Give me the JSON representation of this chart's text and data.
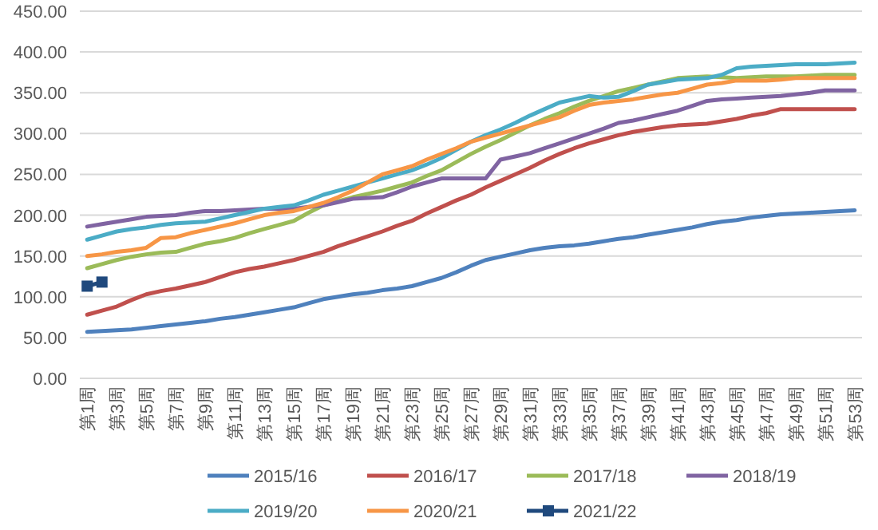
{
  "chart_data": {
    "type": "line",
    "categories": [
      "第1周",
      null,
      "第3周",
      null,
      "第5周",
      null,
      "第7周",
      null,
      "第9周",
      null,
      "第11周",
      null,
      "第13周",
      null,
      "第15周",
      null,
      "第17周",
      null,
      "第19周",
      null,
      "第21周",
      null,
      "第23周",
      null,
      "第25周",
      null,
      "第27周",
      null,
      "第29周",
      null,
      "第31周",
      null,
      "第33周",
      null,
      "第35周",
      null,
      "第37周",
      null,
      "第39周",
      null,
      "第41周",
      null,
      "第43周",
      null,
      "第45周",
      null,
      "第47周",
      null,
      "第49周",
      null,
      "第51周",
      null,
      "第53周"
    ],
    "ylim": [
      0,
      450
    ],
    "yticks": [
      {
        "value": 0,
        "label": "0.00"
      },
      {
        "value": 50,
        "label": "50.00"
      },
      {
        "value": 100,
        "label": "100.00"
      },
      {
        "value": 150,
        "label": "150.00"
      },
      {
        "value": 200,
        "label": "200.00"
      },
      {
        "value": 250,
        "label": "250.00"
      },
      {
        "value": 300,
        "label": "300.00"
      },
      {
        "value": 350,
        "label": "350.00"
      },
      {
        "value": 400,
        "label": "400.00"
      },
      {
        "value": 450,
        "label": "450.00"
      }
    ],
    "grid": "y",
    "legend": "bottom",
    "marker": "none",
    "series": [
      {
        "name": "2015/16",
        "color": "#4f81bd",
        "values": [
          57,
          58,
          59,
          60,
          62,
          64,
          66,
          68,
          70,
          73,
          75,
          78,
          81,
          84,
          87,
          92,
          97,
          100,
          103,
          105,
          108,
          110,
          113,
          118,
          123,
          130,
          138,
          145,
          149,
          153,
          157,
          160,
          162,
          163,
          165,
          168,
          171,
          173,
          176,
          179,
          182,
          185,
          189,
          192,
          194,
          197,
          199,
          201,
          202,
          203,
          204,
          205,
          206
        ]
      },
      {
        "name": "2016/17",
        "color": "#c0504d",
        "values": [
          78,
          83,
          88,
          96,
          103,
          107,
          110,
          114,
          118,
          124,
          130,
          134,
          137,
          141,
          145,
          150,
          155,
          162,
          168,
          174,
          180,
          187,
          193,
          202,
          210,
          218,
          225,
          234,
          242,
          250,
          258,
          267,
          275,
          282,
          288,
          293,
          298,
          302,
          305,
          308,
          310,
          311,
          312,
          315,
          318,
          322,
          325,
          330,
          330,
          330,
          330,
          330,
          330
        ]
      },
      {
        "name": "2017/18",
        "color": "#9bbb59",
        "values": [
          135,
          140,
          145,
          149,
          152,
          154,
          155,
          160,
          165,
          168,
          172,
          178,
          183,
          188,
          193,
          203,
          212,
          217,
          222,
          226,
          230,
          235,
          240,
          248,
          255,
          265,
          275,
          284,
          292,
          301,
          310,
          318,
          325,
          333,
          340,
          346,
          352,
          356,
          360,
          364,
          368,
          369,
          370,
          369,
          368,
          369,
          370,
          370,
          370,
          371,
          372,
          372,
          372
        ]
      },
      {
        "name": "2018/19",
        "color": "#8064a2",
        "values": [
          186,
          189,
          192,
          195,
          198,
          199,
          200,
          203,
          205,
          205,
          206,
          207,
          208,
          208,
          208,
          210,
          212,
          216,
          220,
          221,
          222,
          228,
          235,
          240,
          245,
          245,
          245,
          245,
          268,
          272,
          276,
          282,
          288,
          294,
          300,
          306,
          313,
          316,
          320,
          324,
          328,
          334,
          340,
          342,
          343,
          344,
          345,
          346,
          348,
          350,
          353,
          353,
          353
        ]
      },
      {
        "name": "2019/20",
        "color": "#4bacc6",
        "values": [
          170,
          175,
          180,
          183,
          185,
          188,
          190,
          191,
          192,
          196,
          200,
          204,
          208,
          210,
          212,
          218,
          225,
          230,
          235,
          240,
          245,
          250,
          255,
          262,
          270,
          280,
          290,
          298,
          305,
          313,
          322,
          330,
          338,
          342,
          346,
          344,
          345,
          352,
          360,
          363,
          366,
          367,
          368,
          372,
          380,
          382,
          383,
          384,
          385,
          385,
          385,
          386,
          387
        ]
      },
      {
        "name": "2020/21",
        "color": "#f79646",
        "values": [
          150,
          152,
          155,
          157,
          160,
          172,
          173,
          178,
          182,
          186,
          190,
          195,
          200,
          203,
          205,
          210,
          215,
          222,
          230,
          240,
          250,
          255,
          260,
          268,
          275,
          282,
          290,
          295,
          300,
          305,
          310,
          315,
          320,
          328,
          335,
          338,
          340,
          342,
          345,
          348,
          350,
          355,
          360,
          362,
          365,
          365,
          365,
          366,
          368,
          368,
          368,
          368,
          368
        ]
      },
      {
        "name": "2021/22",
        "color": "#1f497d",
        "marker": "square",
        "values": [
          113,
          118,
          null,
          null,
          null,
          null,
          null,
          null,
          null,
          null,
          null,
          null,
          null,
          null,
          null,
          null,
          null,
          null,
          null,
          null,
          null,
          null,
          null,
          null,
          null,
          null,
          null,
          null,
          null,
          null,
          null,
          null,
          null,
          null,
          null,
          null,
          null,
          null,
          null,
          null,
          null,
          null,
          null,
          null,
          null,
          null,
          null,
          null,
          null,
          null,
          null,
          null,
          null
        ]
      }
    ]
  }
}
